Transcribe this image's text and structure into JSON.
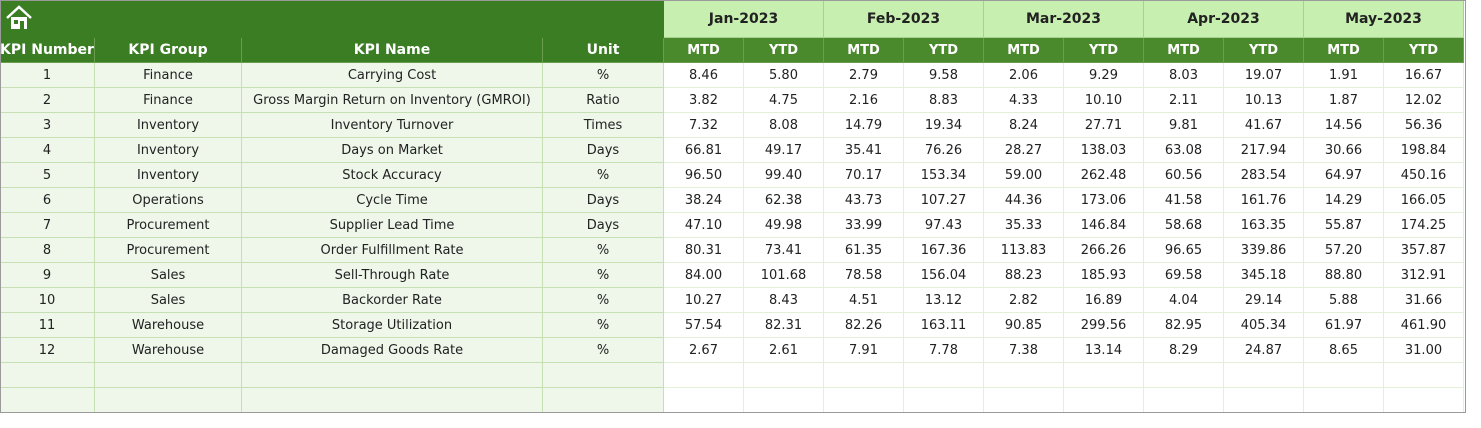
{
  "table": {
    "columns": [
      "KPI Number",
      "KPI Group",
      "KPI Name",
      "Unit"
    ],
    "months": [
      "Jan-2023",
      "Feb-2023",
      "Mar-2023",
      "Apr-2023",
      "May-2023"
    ],
    "sub_columns": [
      "MTD",
      "YTD"
    ],
    "rows": [
      {
        "number": 1,
        "group": "Finance",
        "name": "Carrying Cost",
        "unit": "%",
        "values": [
          "8.46",
          "5.80",
          "2.79",
          "9.58",
          "2.06",
          "9.29",
          "8.03",
          "19.07",
          "1.91",
          "16.67"
        ]
      },
      {
        "number": 2,
        "group": "Finance",
        "name": "Gross Margin Return on Inventory (GMROI)",
        "unit": "Ratio",
        "values": [
          "3.82",
          "4.75",
          "2.16",
          "8.83",
          "4.33",
          "10.10",
          "2.11",
          "10.13",
          "1.87",
          "12.02"
        ]
      },
      {
        "number": 3,
        "group": "Inventory",
        "name": "Inventory Turnover",
        "unit": "Times",
        "values": [
          "7.32",
          "8.08",
          "14.79",
          "19.34",
          "8.24",
          "27.71",
          "9.81",
          "41.67",
          "14.56",
          "56.36"
        ]
      },
      {
        "number": 4,
        "group": "Inventory",
        "name": "Days on Market",
        "unit": "Days",
        "values": [
          "66.81",
          "49.17",
          "35.41",
          "76.26",
          "28.27",
          "138.03",
          "63.08",
          "217.94",
          "30.66",
          "198.84"
        ]
      },
      {
        "number": 5,
        "group": "Inventory",
        "name": "Stock Accuracy",
        "unit": "%",
        "values": [
          "96.50",
          "99.40",
          "70.17",
          "153.34",
          "59.00",
          "262.48",
          "60.56",
          "283.54",
          "64.97",
          "450.16"
        ]
      },
      {
        "number": 6,
        "group": "Operations",
        "name": "Cycle Time",
        "unit": "Days",
        "values": [
          "38.24",
          "62.38",
          "43.73",
          "107.27",
          "44.36",
          "173.06",
          "41.58",
          "161.76",
          "14.29",
          "166.05"
        ]
      },
      {
        "number": 7,
        "group": "Procurement",
        "name": "Supplier Lead Time",
        "unit": "Days",
        "values": [
          "47.10",
          "49.98",
          "33.99",
          "97.43",
          "35.33",
          "146.84",
          "58.68",
          "163.35",
          "55.87",
          "174.25"
        ]
      },
      {
        "number": 8,
        "group": "Procurement",
        "name": "Order Fulfillment Rate",
        "unit": "%",
        "values": [
          "80.31",
          "73.41",
          "61.35",
          "167.36",
          "113.83",
          "266.26",
          "96.65",
          "339.86",
          "57.20",
          "357.87"
        ]
      },
      {
        "number": 9,
        "group": "Sales",
        "name": "Sell-Through Rate",
        "unit": "%",
        "values": [
          "84.00",
          "101.68",
          "78.58",
          "156.04",
          "88.23",
          "185.93",
          "69.58",
          "345.18",
          "88.80",
          "312.91"
        ]
      },
      {
        "number": 10,
        "group": "Sales",
        "name": "Backorder Rate",
        "unit": "%",
        "values": [
          "10.27",
          "8.43",
          "4.51",
          "13.12",
          "2.82",
          "16.89",
          "4.04",
          "29.14",
          "5.88",
          "31.66"
        ]
      },
      {
        "number": 11,
        "group": "Warehouse",
        "name": "Storage Utilization",
        "unit": "%",
        "values": [
          "57.54",
          "82.31",
          "82.26",
          "163.11",
          "90.85",
          "299.56",
          "82.95",
          "405.34",
          "61.97",
          "461.90"
        ]
      },
      {
        "number": 12,
        "group": "Warehouse",
        "name": "Damaged Goods Rate",
        "unit": "%",
        "values": [
          "2.67",
          "2.61",
          "7.91",
          "7.78",
          "7.38",
          "13.14",
          "8.29",
          "24.87",
          "8.65",
          "31.00"
        ]
      }
    ]
  }
}
